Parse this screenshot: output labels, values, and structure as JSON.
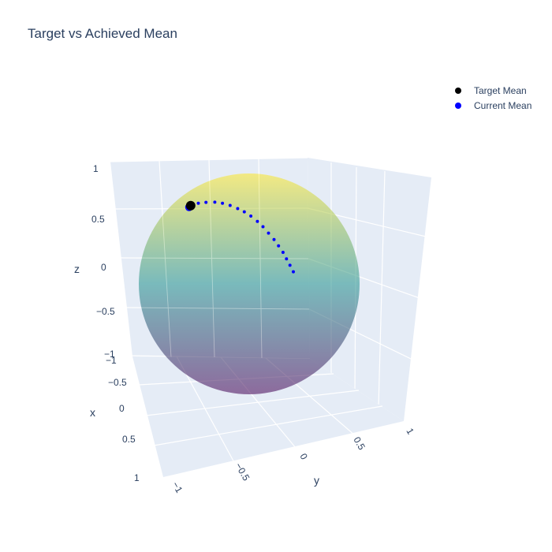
{
  "chart_data": {
    "type": "scatter3d",
    "title": "Target vs Achieved Mean",
    "axes": {
      "x": {
        "label": "x",
        "ticks": [
          "-1",
          "-0.5",
          "0",
          "0.5",
          "1"
        ],
        "range": [
          -1,
          1
        ]
      },
      "y": {
        "label": "y",
        "ticks": [
          "-1",
          "-0.5",
          "0",
          "0.5",
          "1"
        ],
        "range": [
          -1,
          1
        ]
      },
      "z": {
        "label": "z",
        "ticks": [
          "-1",
          "-0.5",
          "0",
          "0.5",
          "1"
        ],
        "range": [
          -1,
          1
        ]
      }
    },
    "surface": {
      "type": "unit-sphere",
      "colorscale": [
        "#440154",
        "#21918c",
        "#fde725"
      ],
      "opacity": 0.5
    },
    "legend": {
      "position": "top-right",
      "items": [
        {
          "name": "Target Mean",
          "color": "#000000"
        },
        {
          "name": "Current Mean",
          "color": "#0000ff"
        }
      ]
    },
    "series": [
      {
        "name": "Target Mean",
        "color": "#000000",
        "points": [
          {
            "x": -0.1,
            "y": -0.6,
            "z": 0.75
          }
        ]
      },
      {
        "name": "Current Mean",
        "color": "#0000ff",
        "points": [
          {
            "x": -0.1,
            "y": -0.6,
            "z": 0.75
          },
          {
            "x": -0.08,
            "y": -0.56,
            "z": 0.77
          },
          {
            "x": -0.05,
            "y": -0.5,
            "z": 0.79
          },
          {
            "x": -0.02,
            "y": -0.42,
            "z": 0.8
          },
          {
            "x": 0.0,
            "y": -0.33,
            "z": 0.8
          },
          {
            "x": 0.03,
            "y": -0.25,
            "z": 0.79
          },
          {
            "x": 0.06,
            "y": -0.17,
            "z": 0.77
          },
          {
            "x": 0.09,
            "y": -0.09,
            "z": 0.74
          },
          {
            "x": 0.12,
            "y": -0.02,
            "z": 0.71
          },
          {
            "x": 0.15,
            "y": 0.05,
            "z": 0.67
          },
          {
            "x": 0.18,
            "y": 0.12,
            "z": 0.62
          },
          {
            "x": 0.21,
            "y": 0.18,
            "z": 0.57
          },
          {
            "x": 0.24,
            "y": 0.24,
            "z": 0.51
          },
          {
            "x": 0.27,
            "y": 0.3,
            "z": 0.45
          },
          {
            "x": 0.3,
            "y": 0.35,
            "z": 0.39
          },
          {
            "x": 0.33,
            "y": 0.4,
            "z": 0.33
          },
          {
            "x": 0.36,
            "y": 0.44,
            "z": 0.27
          },
          {
            "x": 0.39,
            "y": 0.48,
            "z": 0.21
          },
          {
            "x": 0.42,
            "y": 0.52,
            "z": 0.15
          }
        ]
      }
    ]
  }
}
